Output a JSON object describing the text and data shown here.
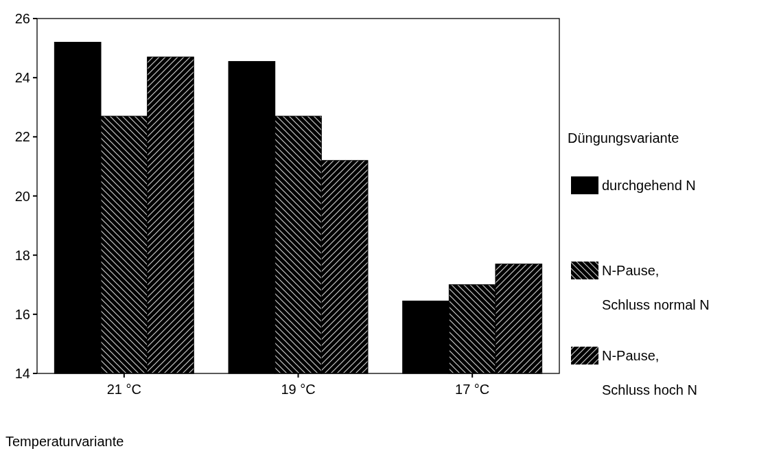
{
  "chart_data": {
    "type": "bar",
    "xlabel": "Temperaturvariante",
    "legend_title": "Düngungsvariante",
    "categories": [
      "21 °C",
      "19 °C",
      "17 °C"
    ],
    "series": [
      {
        "name": "durchgehend N",
        "color": "#000000",
        "values": [
          25.2,
          24.55,
          16.45
        ]
      },
      {
        "name": "N-Pause, Schluss normal N",
        "color": "#000000",
        "values": [
          22.7,
          22.7,
          17.0
        ]
      },
      {
        "name": "N-Pause, Schluss hoch N",
        "color": "#000000",
        "values": [
          24.7,
          21.2,
          17.7
        ]
      }
    ],
    "ylim": [
      14,
      26
    ],
    "yticks": [
      14,
      16,
      18,
      20,
      22,
      24,
      26
    ],
    "grid": false,
    "legend": "right"
  }
}
